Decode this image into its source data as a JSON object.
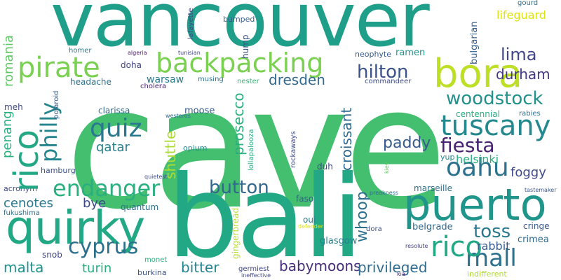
{
  "words": [
    {
      "text": "cave",
      "color": "#44bf70"
    },
    {
      "text": "vancouver",
      "color": "#1f9e89"
    },
    {
      "text": "bali",
      "color": "#22a884"
    },
    {
      "text": "puerto",
      "color": "#1f958b"
    },
    {
      "text": "quirky",
      "color": "#22a884"
    },
    {
      "text": "bora",
      "color": "#bddf26"
    },
    {
      "text": "backpacking",
      "color": "#7ad151"
    },
    {
      "text": "pirate",
      "color": "#7ad151"
    },
    {
      "text": "tuscany",
      "color": "#23898e"
    },
    {
      "text": "endanger",
      "color": "#2ab07f"
    },
    {
      "text": "quiz",
      "color": "#2a788e"
    },
    {
      "text": "oahu",
      "color": "#2c728e"
    },
    {
      "text": "fiesta",
      "color": "#482173"
    },
    {
      "text": "mall",
      "color": "#2c728e"
    },
    {
      "text": "rico",
      "color": "#22a884"
    },
    {
      "text": "cyprus",
      "color": "#2d708e"
    },
    {
      "text": "woodstock",
      "color": "#21918c"
    },
    {
      "text": "philly",
      "color": "#25858e"
    },
    {
      "text": "ho",
      "color": "#2c728e"
    },
    {
      "text": "button",
      "color": "#31688e"
    },
    {
      "text": "toss",
      "color": "#2a788e"
    },
    {
      "text": "hilton",
      "color": "#3b528b"
    },
    {
      "text": "lima",
      "color": "#404688"
    },
    {
      "text": "durham",
      "color": "#443983"
    },
    {
      "text": "prosecco",
      "color": "#2ab07f"
    },
    {
      "text": "croissant",
      "color": "#31688e"
    },
    {
      "text": "whoop",
      "color": "#2d708e"
    },
    {
      "text": "paddy",
      "color": "#38598c"
    },
    {
      "text": "dresden",
      "color": "#31688e"
    },
    {
      "text": "helsinki",
      "color": "#29af7f"
    },
    {
      "text": "babymoons",
      "color": "#472c7a"
    },
    {
      "text": "privileged",
      "color": "#2f6c8e"
    },
    {
      "text": "malta",
      "color": "#20928c"
    },
    {
      "text": "bitter",
      "color": "#25838e"
    },
    {
      "text": "turin",
      "color": "#2ab07f"
    },
    {
      "text": "shuttle",
      "color": "#addc30"
    },
    {
      "text": "qatar",
      "color": "#277f8e"
    },
    {
      "text": "penang",
      "color": "#29af7f"
    },
    {
      "text": "romania",
      "color": "#5ec962"
    },
    {
      "text": "cenotes",
      "color": "#2a788e"
    },
    {
      "text": "bye",
      "color": "#3e4989"
    },
    {
      "text": "foggy",
      "color": "#3e4989"
    },
    {
      "text": "rabbit",
      "color": "#375a8c"
    },
    {
      "text": "crimea",
      "color": "#306a8e"
    },
    {
      "text": "warsaw",
      "color": "#2a788e"
    },
    {
      "text": "moose",
      "color": "#38598c"
    },
    {
      "text": "headache",
      "color": "#2d708e"
    },
    {
      "text": "doha",
      "color": "#414487"
    },
    {
      "text": "belgrade",
      "color": "#31688e"
    },
    {
      "text": "cringe",
      "color": "#375a8c"
    },
    {
      "text": "glasgow",
      "color": "#277f8e"
    },
    {
      "text": "quantum",
      "color": "#2e6f8e"
    },
    {
      "text": "hamburg",
      "color": "#3b528b"
    },
    {
      "text": "acronym",
      "color": "#3e4989"
    },
    {
      "text": "fukushima",
      "color": "#2d708e"
    },
    {
      "text": "snob",
      "color": "#404688"
    },
    {
      "text": "oui",
      "color": "#26818e"
    },
    {
      "text": "faso",
      "color": "#34608d"
    },
    {
      "text": "dora",
      "color": "#3b528b"
    },
    {
      "text": "marseille",
      "color": "#2d708e"
    },
    {
      "text": "duh",
      "color": "#3e4989"
    },
    {
      "text": "yup",
      "color": "#23898e"
    },
    {
      "text": "clarissa",
      "color": "#31688e"
    },
    {
      "text": "opium",
      "color": "#23898e"
    },
    {
      "text": "ramen",
      "color": "#1f968b"
    },
    {
      "text": "lifeguard",
      "color": "#dde318"
    },
    {
      "text": "neophyte",
      "color": "#38598c"
    },
    {
      "text": "bulgarian",
      "color": "#355f8d"
    },
    {
      "text": "centennial",
      "color": "#29af7f"
    },
    {
      "text": "rabies",
      "color": "#2d708e"
    },
    {
      "text": "meh",
      "color": "#3f4788"
    },
    {
      "text": "polaroid",
      "color": "#38598c"
    },
    {
      "text": "cholera",
      "color": "#482173"
    },
    {
      "text": "musing",
      "color": "#2c728e"
    },
    {
      "text": "nester",
      "color": "#35b779"
    },
    {
      "text": "hump",
      "color": "#3b528b"
    },
    {
      "text": "bumped",
      "color": "#34608d"
    },
    {
      "text": "commandeer",
      "color": "#3e4a89"
    },
    {
      "text": "homer",
      "color": "#2a788e"
    },
    {
      "text": "algeria",
      "color": "#471365"
    },
    {
      "text": "tunisian",
      "color": "#414487"
    },
    {
      "text": "lafayette",
      "color": "#404688"
    },
    {
      "text": "gourd",
      "color": "#2d708e"
    },
    {
      "text": "westeros",
      "color": "#31688e"
    },
    {
      "text": "rockaways",
      "color": "#3e4989"
    },
    {
      "text": "lollapalooza",
      "color": "#29af7f"
    },
    {
      "text": "kiev",
      "color": "#5ec962"
    },
    {
      "text": "quietest",
      "color": "#3e4989"
    },
    {
      "text": "preakness",
      "color": "#306a8e"
    },
    {
      "text": "tastemaker",
      "color": "#39568c"
    },
    {
      "text": "gingerbread",
      "color": "#b5de2b"
    },
    {
      "text": "defender",
      "color": "#dde318"
    },
    {
      "text": "resolute",
      "color": "#433e85"
    },
    {
      "text": "monet",
      "color": "#29af7f"
    },
    {
      "text": "burkina",
      "color": "#3b528b"
    },
    {
      "text": "germiest",
      "color": "#3f4788"
    },
    {
      "text": "ineffective",
      "color": "#3e4989"
    },
    {
      "text": "kia",
      "color": "#482475"
    },
    {
      "text": "indifferent",
      "color": "#addc30"
    }
  ]
}
